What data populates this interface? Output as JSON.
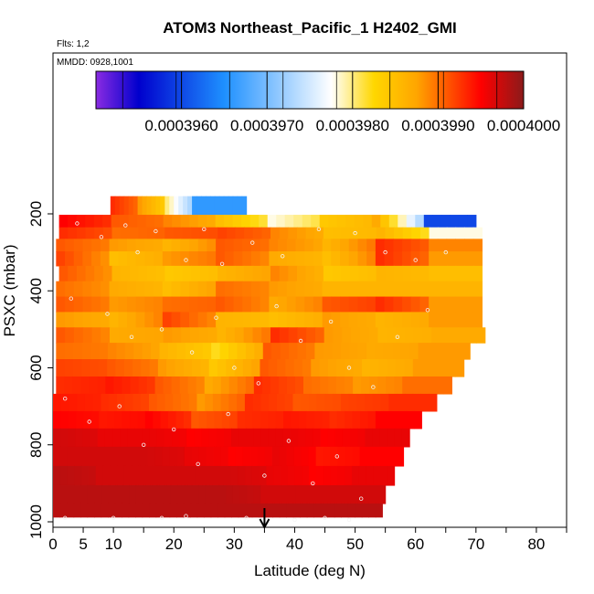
{
  "chart_data": {
    "type": "heatmap",
    "title": "ATOM3 Northeast_Pacific_1 H2402_GMI",
    "subtitle_flights": "Flts: 1,2",
    "subtitle_dates": "MMDD: 0928,1001",
    "xlabel": "Latitude (deg N)",
    "ylabel": "PSXC (mbar)",
    "xlim": [
      0,
      85
    ],
    "ylim": [
      1000,
      100
    ],
    "x_ticks": [
      0,
      5,
      10,
      20,
      30,
      40,
      50,
      60,
      70,
      80
    ],
    "x_minor_ticks": [
      15,
      25,
      35,
      45,
      55,
      65,
      75,
      85
    ],
    "y_ticks": [
      200,
      400,
      600,
      800,
      1000
    ],
    "colorbar": {
      "min": 0.000395,
      "max": 0.0004,
      "tick_values": [
        0.000396,
        0.000397,
        0.000398,
        0.000399,
        0.0004
      ],
      "tick_labels": [
        "0.0003960",
        "0.0003970",
        "0.0003980",
        "0.0003990",
        "0.0004000"
      ],
      "colors": [
        "#8a2be2",
        "#0000cd",
        "#1e90ff",
        "#ffffff",
        "#ffd700",
        "#ffa500",
        "#ff0000",
        "#8b1a1a"
      ]
    },
    "arrow_latitude": 35,
    "rows": [
      {
        "p": 185,
        "lat": [
          9.5,
          32
        ],
        "vals": [
          0.0003993,
          0.0003988,
          0.000398,
          0.0003966,
          0.0003966
        ]
      },
      {
        "p": 220,
        "lat": [
          1,
          70
        ],
        "vals": [
          0.0003995,
          0.0003991,
          0.0003989,
          0.0003985,
          0.0003978,
          0.0003984,
          0.0003987,
          0.000396
        ]
      },
      {
        "p": 250,
        "lat": [
          1,
          71
        ],
        "vals": [
          0.0003993,
          0.000399,
          0.0003991,
          0.0003992,
          0.0003989,
          0.0003985,
          0.0003986,
          0.0003978
        ]
      },
      {
        "p": 280,
        "lat": [
          0.5,
          71
        ],
        "vals": [
          0.0003991,
          0.0003988,
          0.0003986,
          0.0003991,
          0.0003989,
          0.0003986,
          0.0003993,
          0.0003989
        ]
      },
      {
        "p": 315,
        "lat": [
          0.5,
          71
        ],
        "vals": [
          0.0003992,
          0.0003985,
          0.0003988,
          0.0003991,
          0.0003987,
          0.0003985,
          0.0003993,
          0.0003988
        ]
      },
      {
        "p": 355,
        "lat": [
          1,
          71
        ],
        "vals": [
          0.0003991,
          0.0003986,
          0.0003984,
          0.0003986,
          0.0003989,
          0.0003984,
          0.0003986,
          0.0003985
        ]
      },
      {
        "p": 395,
        "lat": [
          0.5,
          71
        ],
        "vals": [
          0.000399,
          0.0003987,
          0.0003985,
          0.000399,
          0.0003988,
          0.0003986,
          0.0003986,
          0.0003986
        ]
      },
      {
        "p": 435,
        "lat": [
          0.5,
          71
        ],
        "vals": [
          0.0003991,
          0.0003988,
          0.000399,
          0.0003991,
          0.0003987,
          0.0003991,
          0.0003993,
          0.0003988
        ]
      },
      {
        "p": 475,
        "lat": [
          0.5,
          71
        ],
        "vals": [
          0.0003988,
          0.0003986,
          0.0003992,
          0.0003986,
          0.0003985,
          0.0003988,
          0.0003986,
          0.0003988
        ]
      },
      {
        "p": 515,
        "lat": [
          0.5,
          71.5
        ],
        "vals": [
          0.0003991,
          0.0003987,
          0.0003988,
          0.0003986,
          0.0003993,
          0.0003988,
          0.0003986,
          0.0003987
        ]
      },
      {
        "p": 555,
        "lat": [
          0.5,
          69
        ],
        "vals": [
          0.000399,
          0.0003989,
          0.0003986,
          0.0003982,
          0.0003991,
          0.0003988,
          0.0003987,
          0.0003988
        ]
      },
      {
        "p": 600,
        "lat": [
          0.5,
          68
        ],
        "vals": [
          0.0003992,
          0.0003991,
          0.0003988,
          0.0003984,
          0.0003991,
          0.0003988,
          0.0003986,
          0.0003988
        ]
      },
      {
        "p": 645,
        "lat": [
          0.5,
          66
        ],
        "vals": [
          0.0003993,
          0.0003994,
          0.0003991,
          0.0003987,
          0.0003993,
          0.000399,
          0.0003988,
          0.000399
        ]
      },
      {
        "p": 690,
        "lat": [
          0,
          63.5
        ],
        "vals": [
          0.0003994,
          0.0003993,
          0.0003991,
          0.0003988,
          0.0003993,
          0.0003991,
          0.0003992,
          0.0003993
        ]
      },
      {
        "p": 735,
        "lat": [
          0,
          61
        ],
        "vals": [
          0.0003995,
          0.0003994,
          0.0003995,
          0.0003991,
          0.0003993,
          0.0003994,
          0.0003993,
          0.0003995
        ]
      },
      {
        "p": 780,
        "lat": [
          0,
          59
        ],
        "vals": [
          0.0003997,
          0.0003996,
          0.0003996,
          0.0003995,
          0.0003996,
          0.0003996,
          0.0003995,
          0.0003996
        ]
      },
      {
        "p": 830,
        "lat": [
          0,
          58
        ],
        "vals": [
          0.0003997,
          0.0003997,
          0.0003997,
          0.0003996,
          0.0003995,
          0.0003996,
          0.0003994,
          0.0003995
        ]
      },
      {
        "p": 880,
        "lat": [
          0,
          56.5
        ],
        "vals": [
          0.0003998,
          0.0003997,
          0.0003997,
          0.0003997,
          0.0003997,
          0.0003996,
          0.0003995,
          0.0003996
        ]
      },
      {
        "p": 930,
        "lat": [
          0,
          55
        ],
        "vals": [
          0.0003998,
          0.0003998,
          0.0003998,
          0.0003998,
          0.0003998,
          0.0003997,
          0.0003997,
          0.0003997
        ]
      },
      {
        "p": 975,
        "lat": [
          0,
          54.5
        ],
        "vals": [
          0.0003998,
          0.0003998,
          0.0003998,
          0.0003998,
          0.0003998,
          0.0003998,
          0.0003998,
          0.0003998
        ]
      }
    ],
    "flight_points": [
      {
        "lat": 4,
        "p": 225
      },
      {
        "lat": 8,
        "p": 260
      },
      {
        "lat": 12,
        "p": 230
      },
      {
        "lat": 14,
        "p": 300
      },
      {
        "lat": 17,
        "p": 245
      },
      {
        "lat": 22,
        "p": 320
      },
      {
        "lat": 25,
        "p": 240
      },
      {
        "lat": 28,
        "p": 330
      },
      {
        "lat": 33,
        "p": 275
      },
      {
        "lat": 38,
        "p": 310
      },
      {
        "lat": 44,
        "p": 240
      },
      {
        "lat": 50,
        "p": 250
      },
      {
        "lat": 55,
        "p": 300
      },
      {
        "lat": 60,
        "p": 320
      },
      {
        "lat": 65,
        "p": 300
      },
      {
        "lat": 3,
        "p": 420
      },
      {
        "lat": 9,
        "p": 460
      },
      {
        "lat": 13,
        "p": 520
      },
      {
        "lat": 18,
        "p": 500
      },
      {
        "lat": 23,
        "p": 560
      },
      {
        "lat": 27,
        "p": 470
      },
      {
        "lat": 30,
        "p": 600
      },
      {
        "lat": 34,
        "p": 640
      },
      {
        "lat": 37,
        "p": 440
      },
      {
        "lat": 41,
        "p": 530
      },
      {
        "lat": 46,
        "p": 480
      },
      {
        "lat": 49,
        "p": 600
      },
      {
        "lat": 53,
        "p": 650
      },
      {
        "lat": 57,
        "p": 520
      },
      {
        "lat": 62,
        "p": 450
      },
      {
        "lat": 2,
        "p": 680
      },
      {
        "lat": 6,
        "p": 740
      },
      {
        "lat": 11,
        "p": 700
      },
      {
        "lat": 15,
        "p": 800
      },
      {
        "lat": 20,
        "p": 760
      },
      {
        "lat": 24,
        "p": 850
      },
      {
        "lat": 29,
        "p": 720
      },
      {
        "lat": 35,
        "p": 880
      },
      {
        "lat": 39,
        "p": 790
      },
      {
        "lat": 43,
        "p": 900
      },
      {
        "lat": 47,
        "p": 830
      },
      {
        "lat": 51,
        "p": 940
      },
      {
        "lat": 2,
        "p": 990
      },
      {
        "lat": 10,
        "p": 990
      },
      {
        "lat": 18,
        "p": 990
      },
      {
        "lat": 22,
        "p": 985
      },
      {
        "lat": 32,
        "p": 990
      },
      {
        "lat": 40,
        "p": 995
      },
      {
        "lat": 45,
        "p": 990
      },
      {
        "lat": 49,
        "p": 995
      }
    ]
  }
}
